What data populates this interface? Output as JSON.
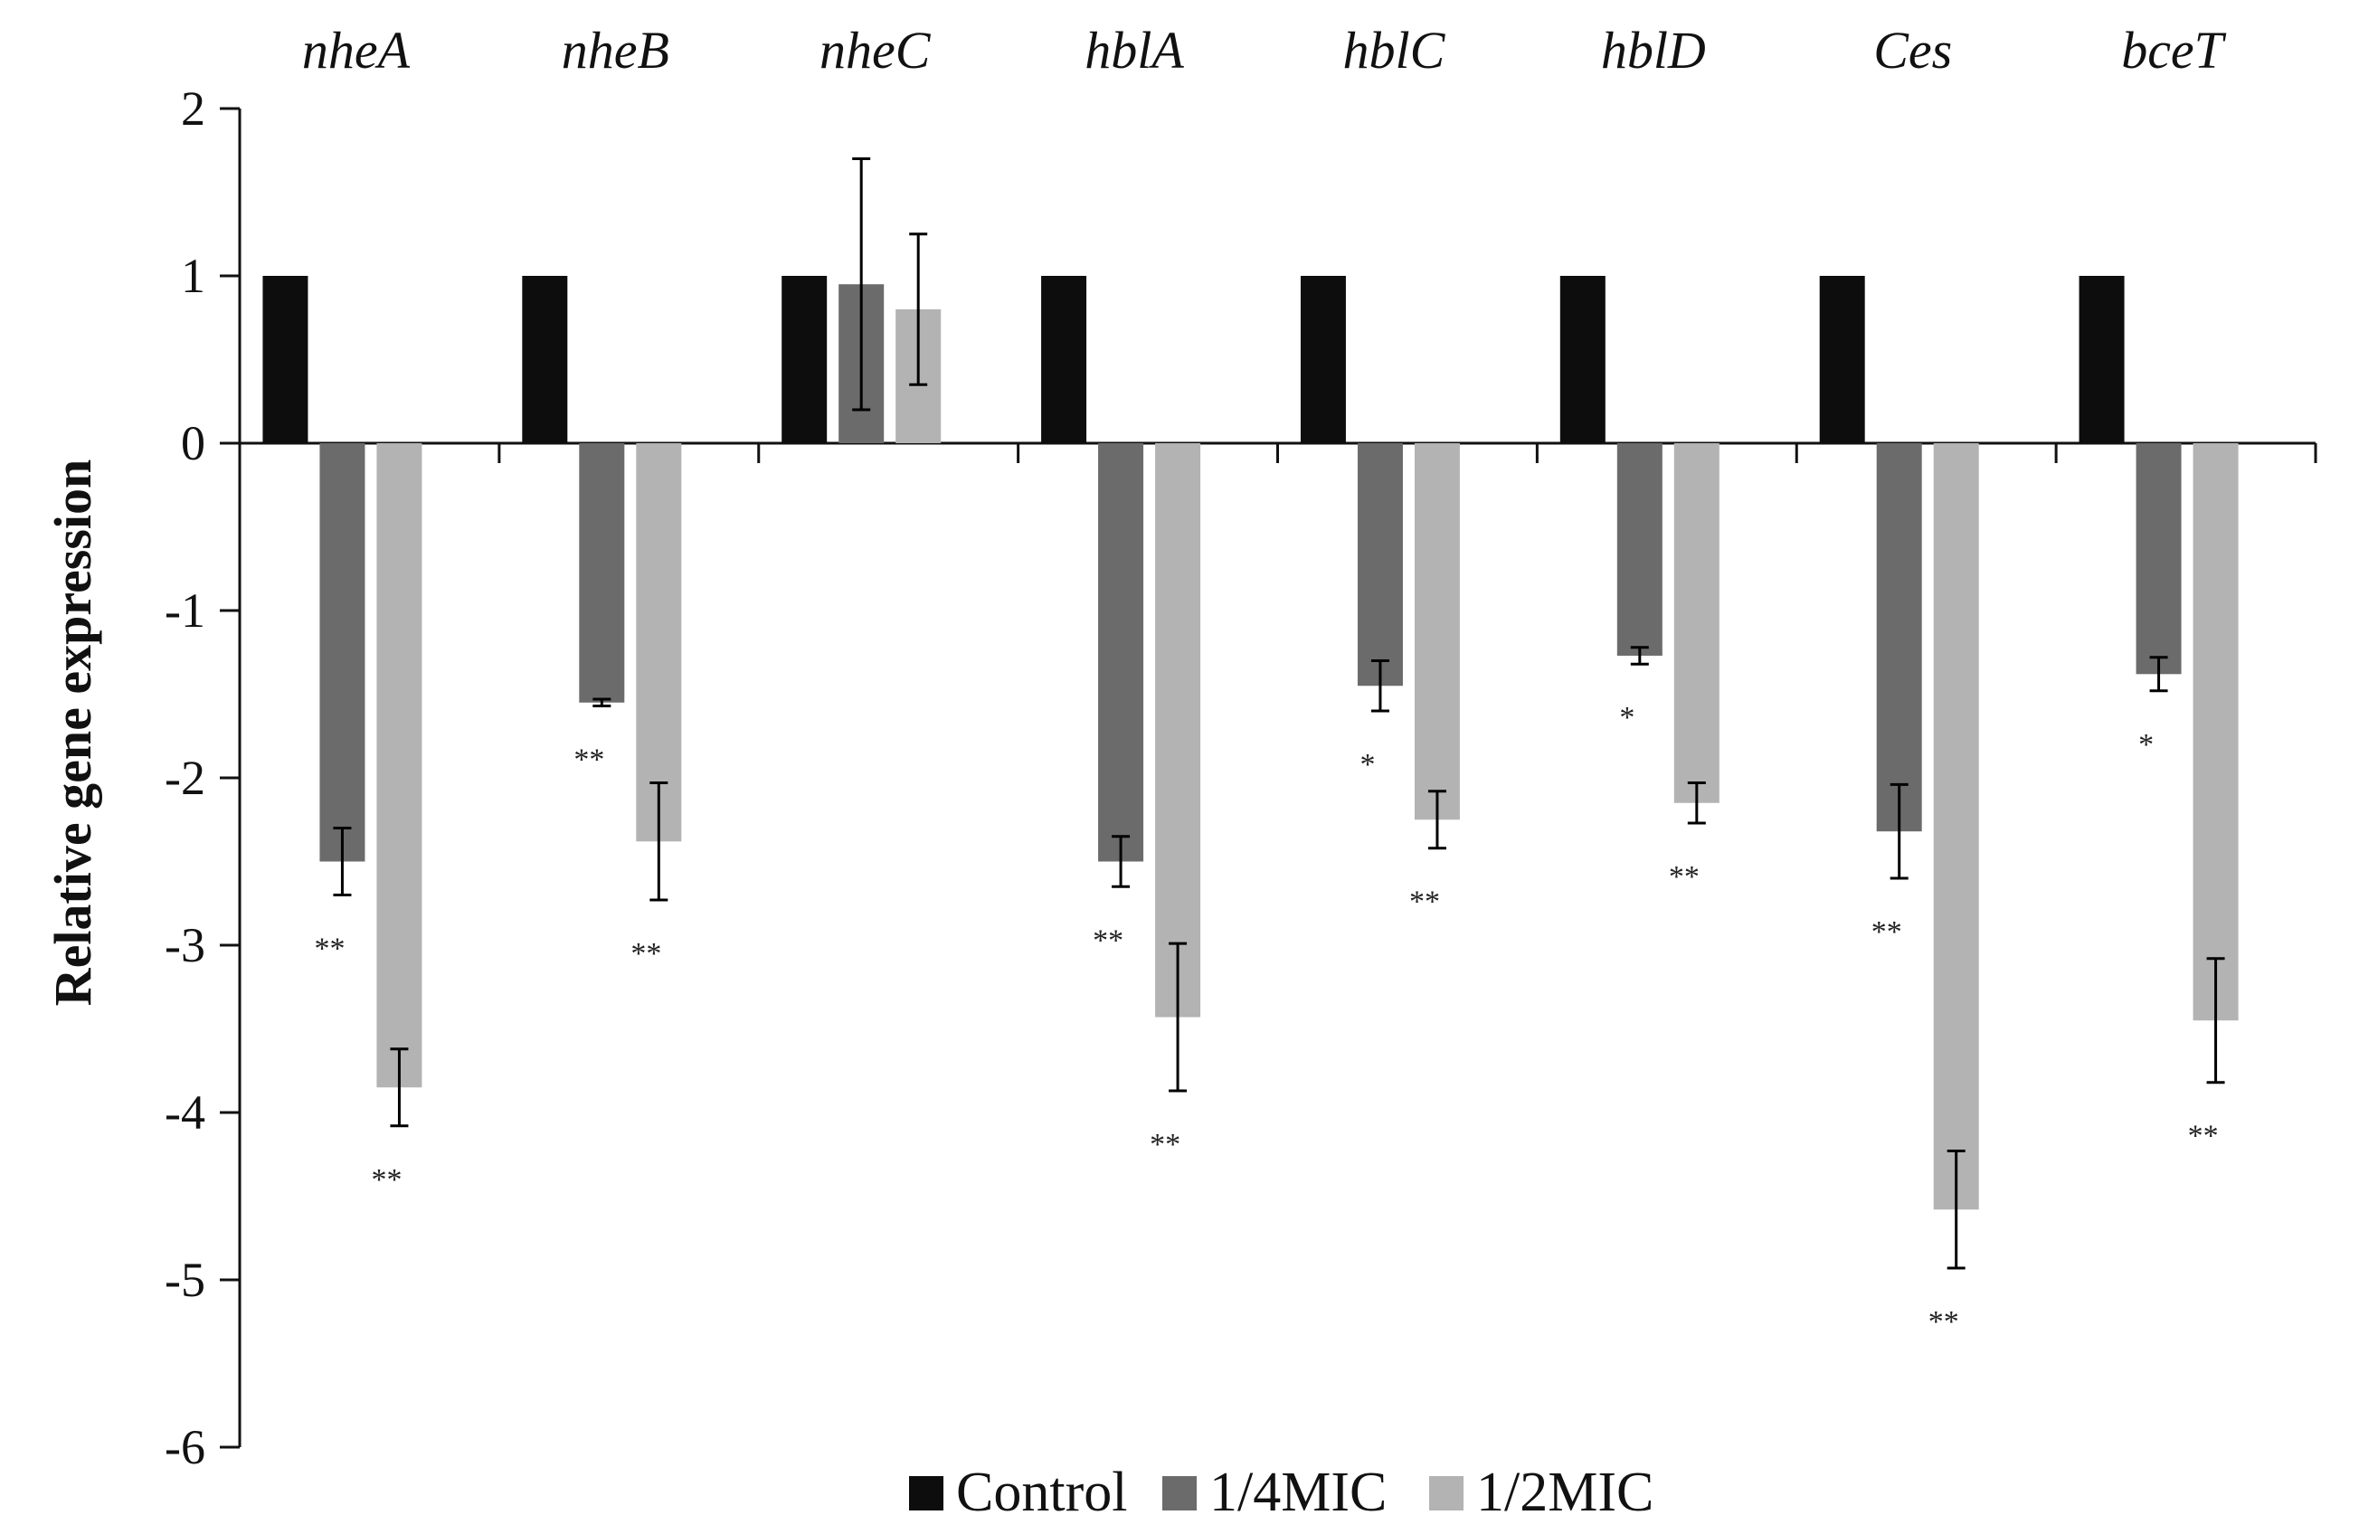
{
  "chart_data": {
    "type": "bar",
    "title": "",
    "xlabel": "",
    "ylabel": "Relative gene expression",
    "ylim": [
      -6,
      2
    ],
    "yticks": [
      2,
      1,
      0,
      -1,
      -2,
      -3,
      -4,
      -5,
      -6
    ],
    "ytick_labels": [
      "2",
      "1",
      "0",
      "-1",
      "-2",
      "-3",
      "-4",
      "-5",
      "-6"
    ],
    "grid": false,
    "legend_position": "bottom-center",
    "categories": [
      "nheA",
      "nheB",
      "nheC",
      "hblA",
      "hblC",
      "hblD",
      "Ces",
      "bceT"
    ],
    "series": [
      {
        "name": "Control",
        "color": "#0d0d0d",
        "values": [
          1,
          1,
          1,
          1,
          1,
          1,
          1,
          1
        ],
        "errors": [
          0,
          0,
          0,
          0,
          0,
          0,
          0,
          0
        ],
        "significance": [
          "",
          "",
          "",
          "",
          "",
          "",
          "",
          ""
        ]
      },
      {
        "name": "1/4MIC",
        "color": "#6b6b6b",
        "values": [
          -2.5,
          -1.55,
          0.95,
          -2.5,
          -1.45,
          -1.27,
          -2.32,
          -1.38
        ],
        "errors": [
          0.2,
          0.02,
          0.75,
          0.15,
          0.15,
          0.05,
          0.28,
          0.1
        ],
        "significance": [
          "**",
          "**",
          "",
          "**",
          "*",
          "*",
          "**",
          "*"
        ]
      },
      {
        "name": "1/2MIC",
        "color": "#b3b3b3",
        "values": [
          -3.85,
          -2.38,
          0.8,
          -3.43,
          -2.25,
          -2.15,
          -4.58,
          -3.45
        ],
        "errors": [
          0.23,
          0.35,
          0.45,
          0.44,
          0.17,
          0.12,
          0.35,
          0.37
        ],
        "significance": [
          "**",
          "**",
          "",
          "**",
          "**",
          "**",
          "**",
          "**"
        ]
      }
    ]
  }
}
